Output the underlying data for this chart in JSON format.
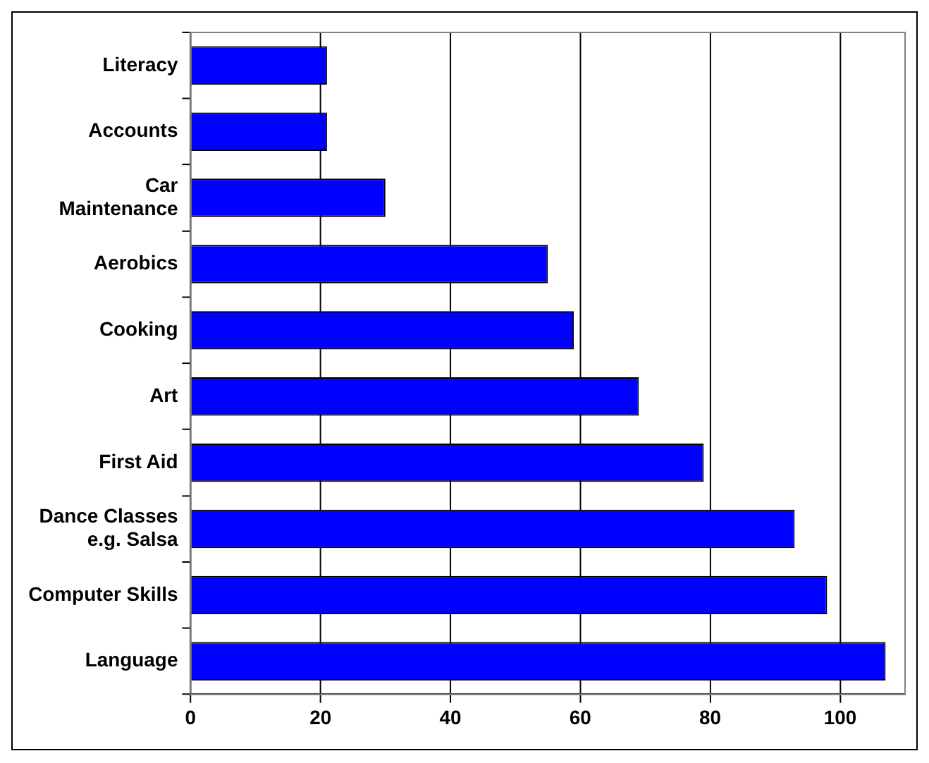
{
  "chart_data": {
    "type": "bar",
    "orientation": "horizontal",
    "categories": [
      "Literacy",
      "Accounts",
      "Car\nMaintenance",
      "Aerobics",
      "Cooking",
      "Art",
      "First Aid",
      "Dance Classes\ne.g. Salsa",
      "Computer Skills",
      "Language"
    ],
    "values": [
      21,
      21,
      30,
      55,
      59,
      69,
      79,
      93,
      98,
      107
    ],
    "color": "#0000ff",
    "xlim": [
      0,
      110
    ],
    "xticks": [
      0,
      20,
      40,
      60,
      80,
      100
    ],
    "grid": "x",
    "legend": false
  }
}
